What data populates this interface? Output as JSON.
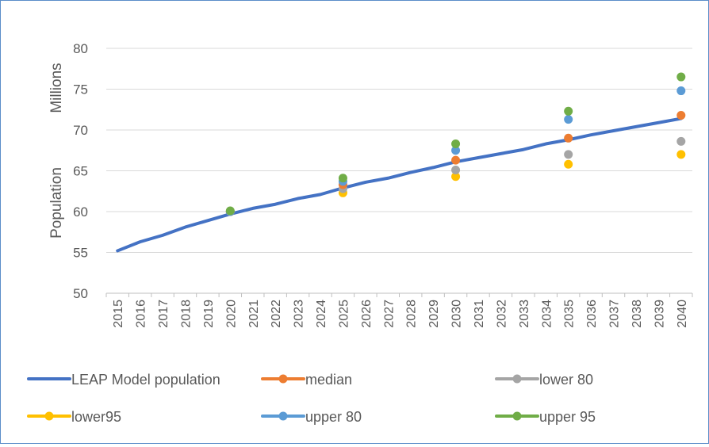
{
  "chart_data": {
    "type": "line",
    "ylabel": "Population",
    "y_units_label": "Millions",
    "ylim": [
      50,
      80
    ],
    "y_ticks": [
      50,
      55,
      60,
      65,
      70,
      75,
      80
    ],
    "x": [
      "2015",
      "2016",
      "2017",
      "2018",
      "2019",
      "2020",
      "2021",
      "2022",
      "2023",
      "2024",
      "2025",
      "2026",
      "2027",
      "2028",
      "2029",
      "2030",
      "2031",
      "2032",
      "2033",
      "2034",
      "2035",
      "2036",
      "2037",
      "2038",
      "2039",
      "2040"
    ],
    "grid": "horizontal",
    "legend_position": "bottom",
    "colors": {
      "leap": "#4472c4",
      "median": "#ed7d31",
      "lower80": "#a5a5a5",
      "lower95": "#ffc000",
      "upper80": "#5b9bd5",
      "upper95": "#70ad47",
      "grid": "#d9d9d9",
      "axis": "#bfbfbf",
      "border": "#5b8dc9"
    },
    "series": [
      {
        "key": "leap",
        "name": "LEAP Model population",
        "kind": "line",
        "values": [
          55.2,
          56.3,
          57.1,
          58.1,
          58.9,
          59.7,
          60.4,
          60.9,
          61.6,
          62.1,
          62.9,
          63.6,
          64.1,
          64.8,
          65.4,
          66.1,
          66.6,
          67.1,
          67.6,
          68.3,
          68.8,
          69.4,
          69.9,
          70.4,
          70.9,
          71.4
        ]
      },
      {
        "key": "median",
        "name": "median",
        "kind": "points",
        "x": [
          "2020",
          "2025",
          "2030",
          "2035",
          "2040"
        ],
        "values": [
          60.0,
          63.3,
          66.3,
          69.0,
          71.8
        ]
      },
      {
        "key": "lower80",
        "name": "lower 80",
        "kind": "points",
        "x": [
          "2020",
          "2025",
          "2030",
          "2035",
          "2040"
        ],
        "values": [
          60.0,
          62.8,
          65.1,
          67.0,
          68.6
        ]
      },
      {
        "key": "lower95",
        "name": "lower95",
        "kind": "points",
        "x": [
          "2020",
          "2025",
          "2030",
          "2035",
          "2040"
        ],
        "values": [
          60.0,
          62.3,
          64.3,
          65.8,
          67.0
        ]
      },
      {
        "key": "upper80",
        "name": "upper 80",
        "kind": "points",
        "x": [
          "2020",
          "2025",
          "2030",
          "2035",
          "2040"
        ],
        "values": [
          60.0,
          63.7,
          67.5,
          71.3,
          74.8
        ]
      },
      {
        "key": "upper95",
        "name": "upper 95",
        "kind": "points",
        "x": [
          "2020",
          "2025",
          "2030",
          "2035",
          "2040"
        ],
        "values": [
          60.1,
          64.1,
          68.3,
          72.3,
          76.5
        ]
      }
    ],
    "legend_order": [
      "leap",
      "median",
      "lower80",
      "lower95",
      "upper80",
      "upper95"
    ]
  }
}
